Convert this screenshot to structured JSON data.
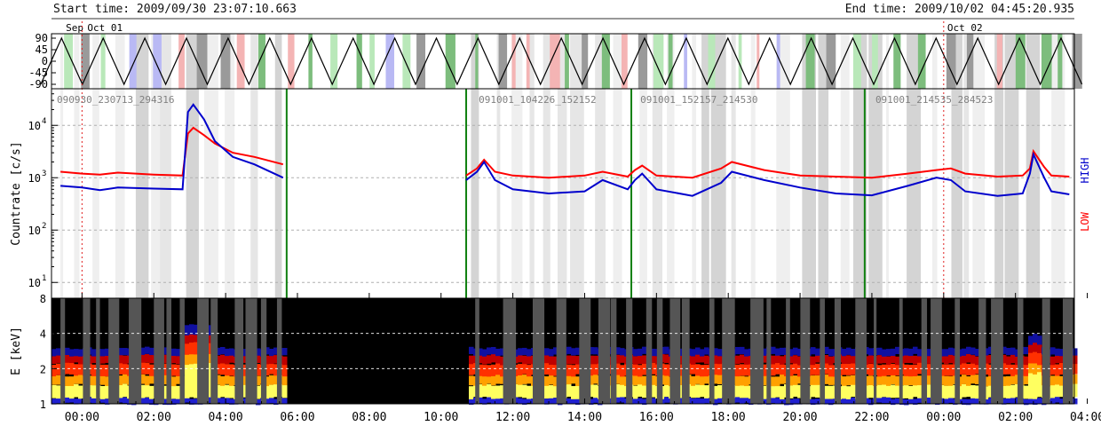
{
  "header": {
    "start_time": "Start time: 2009/09/30 23:07:10.663",
    "end_time": "End time: 2009/10/02 04:45:20.935"
  },
  "chart_data": [
    {
      "type": "line",
      "panel": "spin-phase",
      "date_labels": [
        "Sep",
        "Oct 01",
        "Oct 02"
      ],
      "yticks": [
        "90",
        "45",
        "0",
        "-45",
        "-90"
      ],
      "ylim": [
        -90,
        90
      ],
      "period_hours": 1.16
    },
    {
      "type": "line",
      "panel": "countrate",
      "ylabel": "Countrate [c/s]",
      "scale": "log",
      "ylim": [
        5,
        50000
      ],
      "yticks": [
        "10",
        "10",
        "10",
        "10"
      ],
      "ytick_exponents": [
        "1",
        "2",
        "3",
        "4"
      ],
      "legend": [
        "LOW",
        "HIGH"
      ],
      "colors": {
        "LOW": "#ff0000",
        "HIGH": "#0000cc"
      },
      "annotations": [
        "090930_230713_294316",
        "091001_104226_152152",
        "091001_152157_214530",
        "091001_214535_284523"
      ],
      "boundaries_hours": [
        5.7,
        10.7,
        15.3,
        21.8
      ],
      "series": [
        {
          "name": "LOW",
          "points": [
            [
              -0.6,
              1300
            ],
            [
              0.0,
              1200
            ],
            [
              0.5,
              1150
            ],
            [
              1.0,
              1250
            ],
            [
              2.0,
              1150
            ],
            [
              2.8,
              1100
            ],
            [
              2.95,
              7000
            ],
            [
              3.1,
              9000
            ],
            [
              3.4,
              6500
            ],
            [
              3.7,
              4500
            ],
            [
              4.2,
              3000
            ],
            [
              4.8,
              2500
            ],
            [
              5.6,
              1800
            ],
            [
              10.7,
              1100
            ],
            [
              11.0,
              1500
            ],
            [
              11.2,
              2200
            ],
            [
              11.5,
              1300
            ],
            [
              12.0,
              1100
            ],
            [
              13.0,
              1000
            ],
            [
              14.0,
              1100
            ],
            [
              14.5,
              1300
            ],
            [
              15.2,
              1050
            ],
            [
              15.4,
              1400
            ],
            [
              15.6,
              1700
            ],
            [
              16.0,
              1100
            ],
            [
              17.0,
              1000
            ],
            [
              17.8,
              1500
            ],
            [
              18.1,
              2000
            ],
            [
              19.0,
              1400
            ],
            [
              20.0,
              1100
            ],
            [
              21.0,
              1050
            ],
            [
              22.0,
              1000
            ],
            [
              23.0,
              1200
            ],
            [
              23.8,
              1400
            ],
            [
              24.2,
              1500
            ],
            [
              24.6,
              1200
            ],
            [
              25.5,
              1050
            ],
            [
              26.2,
              1100
            ],
            [
              26.4,
              1500
            ],
            [
              26.5,
              3200
            ],
            [
              26.8,
              1600
            ],
            [
              27.0,
              1100
            ],
            [
              27.5,
              1050
            ]
          ]
        },
        {
          "name": "HIGH",
          "points": [
            [
              -0.6,
              700
            ],
            [
              0.0,
              650
            ],
            [
              0.5,
              580
            ],
            [
              1.0,
              650
            ],
            [
              2.0,
              620
            ],
            [
              2.8,
              600
            ],
            [
              2.95,
              18000
            ],
            [
              3.1,
              25000
            ],
            [
              3.4,
              13000
            ],
            [
              3.7,
              5000
            ],
            [
              4.2,
              2500
            ],
            [
              4.8,
              1800
            ],
            [
              5.6,
              1000
            ],
            [
              10.7,
              900
            ],
            [
              11.0,
              1300
            ],
            [
              11.2,
              2000
            ],
            [
              11.5,
              900
            ],
            [
              12.0,
              600
            ],
            [
              13.0,
              500
            ],
            [
              14.0,
              550
            ],
            [
              14.5,
              900
            ],
            [
              15.2,
              600
            ],
            [
              15.4,
              900
            ],
            [
              15.6,
              1200
            ],
            [
              16.0,
              600
            ],
            [
              17.0,
              450
            ],
            [
              17.8,
              800
            ],
            [
              18.1,
              1300
            ],
            [
              19.0,
              900
            ],
            [
              20.0,
              650
            ],
            [
              21.0,
              500
            ],
            [
              22.0,
              460
            ],
            [
              23.0,
              700
            ],
            [
              23.8,
              1000
            ],
            [
              24.2,
              900
            ],
            [
              24.6,
              550
            ],
            [
              25.5,
              450
            ],
            [
              26.2,
              500
            ],
            [
              26.4,
              1200
            ],
            [
              26.5,
              2800
            ],
            [
              26.8,
              1000
            ],
            [
              27.0,
              550
            ],
            [
              27.5,
              480
            ]
          ]
        }
      ]
    },
    {
      "type": "heatmap",
      "panel": "spectrogram",
      "ylabel": "E [keV]",
      "scale": "log",
      "yticks": [
        "1",
        "2",
        "4",
        "8"
      ],
      "xticks": [
        "00:00",
        "02:00",
        "04:00",
        "06:00",
        "08:00",
        "10:00",
        "12:00",
        "14:00",
        "16:00",
        "18:00",
        "20:00",
        "22:00",
        "00:00",
        "02:00",
        "04:00"
      ],
      "data_gap_hours": [
        5.7,
        10.7
      ]
    }
  ]
}
